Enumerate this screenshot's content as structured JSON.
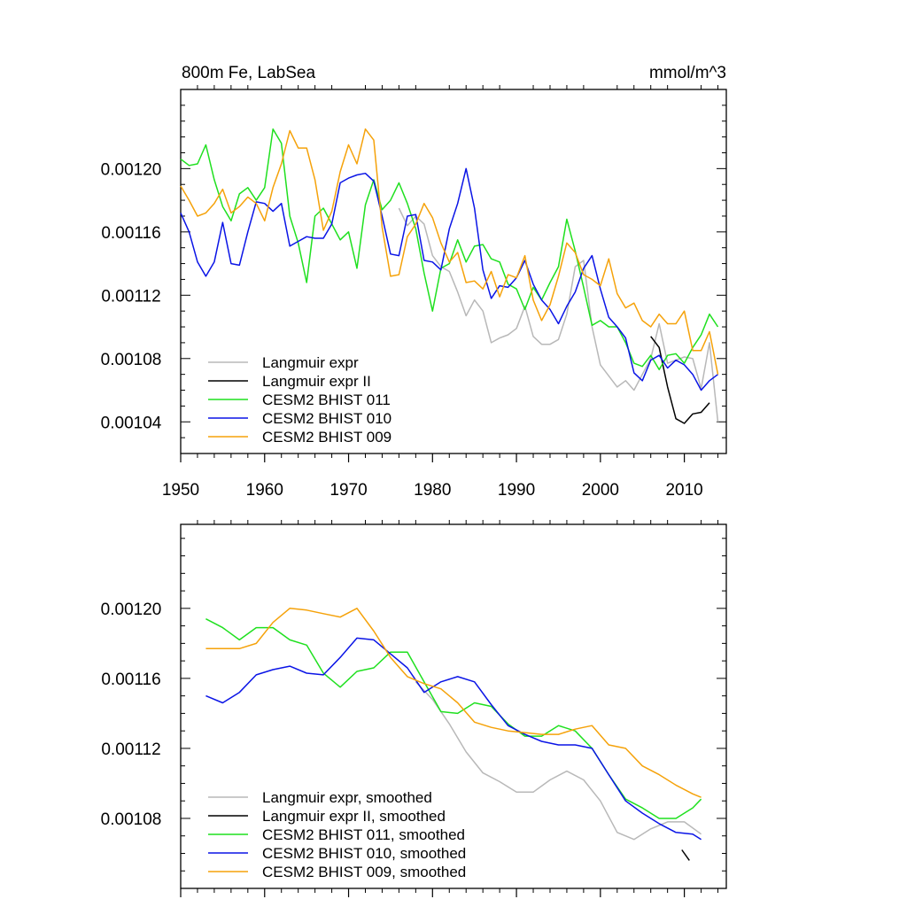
{
  "colors": {
    "Langmuir expr": "#b8b8b8",
    "Langmuir expr II": "#000000",
    "CESM2 BHIST 011": "#1fe01f",
    "CESM2 BHIST 010": "#0a14e6",
    "CESM2 BHIST 009": "#f5a20a"
  },
  "chart_data": [
    {
      "type": "line",
      "title": "800m Fe, LabSea",
      "units": "mmol/m^3",
      "xlim": [
        1950,
        2015
      ],
      "ylim": [
        0.00102,
        0.00125
      ],
      "xticks": [
        1950,
        1960,
        1970,
        1980,
        1990,
        2000,
        2010
      ],
      "xticklabels": [
        "1950",
        "1960",
        "1970",
        "1980",
        "1990",
        "2000",
        "2010"
      ],
      "yticks": [
        0.00104,
        0.00108,
        0.00112,
        0.00116,
        0.0012
      ],
      "yticklabels": [
        "0.00104",
        "0.00108",
        "0.00112",
        "0.00116",
        "0.00120"
      ],
      "legend_position": "bottom-left",
      "legend": [
        "Langmuir expr",
        "Langmuir expr II",
        "CESM2 BHIST 011",
        "CESM2 BHIST 010",
        "CESM2 BHIST 009"
      ],
      "series": [
        {
          "name": "Langmuir expr",
          "x": [
            1976,
            1977,
            1978,
            1979,
            1980,
            1981,
            1982,
            1983,
            1984,
            1985,
            1986,
            1987,
            1988,
            1989,
            1990,
            1991,
            1992,
            1993,
            1994,
            1995,
            1996,
            1997,
            1998,
            1999,
            2000,
            2001,
            2002,
            2003,
            2004,
            2005,
            2006,
            2007,
            2008,
            2009,
            2010,
            2011,
            2012,
            2013,
            2014
          ],
          "values": [
            0.001175,
            0.001164,
            0.00117,
            0.001165,
            0.001145,
            0.001138,
            0.001135,
            0.001122,
            0.001107,
            0.001117,
            0.00111,
            0.00109,
            0.001093,
            0.001095,
            0.001099,
            0.001113,
            0.001094,
            0.001089,
            0.001089,
            0.001092,
            0.001108,
            0.001138,
            0.001142,
            0.0011,
            0.001076,
            0.001069,
            0.001062,
            0.001066,
            0.00106,
            0.00107,
            0.00108,
            0.001102,
            0.001077,
            0.001079,
            0.001081,
            0.00108,
            0.001061,
            0.00109,
            0.00104
          ]
        },
        {
          "name": "Langmuir expr II",
          "x": [
            2006,
            2007,
            2008,
            2009,
            2010,
            2011,
            2012,
            2013
          ],
          "values": [
            0.001094,
            0.001087,
            0.001062,
            0.001042,
            0.001039,
            0.001045,
            0.001046,
            0.001052
          ]
        },
        {
          "name": "CESM2 BHIST 011",
          "x": [
            1950,
            1951,
            1952,
            1953,
            1954,
            1955,
            1956,
            1957,
            1958,
            1959,
            1960,
            1961,
            1962,
            1963,
            1964,
            1965,
            1966,
            1967,
            1968,
            1969,
            1970,
            1971,
            1972,
            1973,
            1974,
            1975,
            1976,
            1977,
            1978,
            1979,
            1980,
            1981,
            1982,
            1983,
            1984,
            1985,
            1986,
            1987,
            1988,
            1989,
            1990,
            1991,
            1992,
            1993,
            1994,
            1995,
            1996,
            1997,
            1998,
            1999,
            2000,
            2001,
            2002,
            2003,
            2004,
            2005,
            2006,
            2007,
            2008,
            2009,
            2010,
            2011,
            2012,
            2013,
            2014
          ],
          "values": [
            0.001206,
            0.001202,
            0.001203,
            0.001215,
            0.001193,
            0.001176,
            0.001167,
            0.001184,
            0.001188,
            0.00118,
            0.001188,
            0.001225,
            0.001216,
            0.00117,
            0.001153,
            0.001128,
            0.00117,
            0.001175,
            0.001165,
            0.001155,
            0.00116,
            0.001137,
            0.001177,
            0.001193,
            0.001174,
            0.00118,
            0.001191,
            0.001178,
            0.001162,
            0.001134,
            0.00111,
            0.001137,
            0.00114,
            0.001155,
            0.001141,
            0.001151,
            0.001152,
            0.001143,
            0.001141,
            0.001127,
            0.001124,
            0.001111,
            0.001125,
            0.001117,
            0.001128,
            0.001138,
            0.001168,
            0.001148,
            0.001125,
            0.001101,
            0.001104,
            0.0011,
            0.0011,
            0.00109,
            0.001077,
            0.001075,
            0.001082,
            0.001073,
            0.001082,
            0.001083,
            0.001077,
            0.001087,
            0.001095,
            0.001108,
            0.0011
          ]
        },
        {
          "name": "CESM2 BHIST 010",
          "x": [
            1950,
            1951,
            1952,
            1953,
            1954,
            1955,
            1956,
            1957,
            1958,
            1959,
            1960,
            1961,
            1962,
            1963,
            1964,
            1965,
            1966,
            1967,
            1968,
            1969,
            1970,
            1971,
            1972,
            1973,
            1974,
            1975,
            1976,
            1977,
            1978,
            1979,
            1980,
            1981,
            1982,
            1983,
            1984,
            1985,
            1986,
            1987,
            1988,
            1989,
            1990,
            1991,
            1992,
            1993,
            1994,
            1995,
            1996,
            1997,
            1998,
            1999,
            2000,
            2001,
            2002,
            2003,
            2004,
            2005,
            2006,
            2007,
            2008,
            2009,
            2010,
            2011,
            2012,
            2013,
            2014
          ],
          "values": [
            0.001172,
            0.00116,
            0.001141,
            0.001132,
            0.001141,
            0.001166,
            0.00114,
            0.001139,
            0.00116,
            0.001179,
            0.001178,
            0.001173,
            0.001178,
            0.001151,
            0.001154,
            0.001157,
            0.001156,
            0.001156,
            0.001165,
            0.001191,
            0.001194,
            0.001196,
            0.001197,
            0.001192,
            0.00117,
            0.001146,
            0.001145,
            0.00117,
            0.001171,
            0.001142,
            0.001141,
            0.001136,
            0.001162,
            0.001178,
            0.0012,
            0.001175,
            0.001136,
            0.001118,
            0.001126,
            0.001125,
            0.001131,
            0.001142,
            0.001127,
            0.001117,
            0.001111,
            0.001102,
            0.001113,
            0.001122,
            0.001137,
            0.001145,
            0.001124,
            0.001106,
            0.0011,
            0.001093,
            0.001071,
            0.001066,
            0.001079,
            0.001082,
            0.001074,
            0.001079,
            0.001076,
            0.00107,
            0.00106,
            0.001066,
            0.00107
          ]
        },
        {
          "name": "CESM2 BHIST 009",
          "x": [
            1950,
            1951,
            1952,
            1953,
            1954,
            1955,
            1956,
            1957,
            1958,
            1959,
            1960,
            1961,
            1962,
            1963,
            1964,
            1965,
            1966,
            1967,
            1968,
            1969,
            1970,
            1971,
            1972,
            1973,
            1974,
            1975,
            1976,
            1977,
            1978,
            1979,
            1980,
            1981,
            1982,
            1983,
            1984,
            1985,
            1986,
            1987,
            1988,
            1989,
            1990,
            1991,
            1992,
            1993,
            1994,
            1995,
            1996,
            1997,
            1998,
            1999,
            2000,
            2001,
            2002,
            2003,
            2004,
            2005,
            2006,
            2007,
            2008,
            2009,
            2010,
            2011,
            2012,
            2013,
            2014
          ],
          "values": [
            0.001189,
            0.00118,
            0.00117,
            0.001172,
            0.001178,
            0.001187,
            0.001172,
            0.001176,
            0.001182,
            0.001178,
            0.001167,
            0.001188,
            0.001203,
            0.001224,
            0.001213,
            0.001213,
            0.001193,
            0.001161,
            0.001173,
            0.001198,
            0.001215,
            0.001203,
            0.001225,
            0.001218,
            0.001163,
            0.001132,
            0.001133,
            0.001157,
            0.001165,
            0.001178,
            0.001169,
            0.001153,
            0.001141,
            0.001147,
            0.001128,
            0.001129,
            0.001124,
            0.001135,
            0.001119,
            0.001133,
            0.001131,
            0.001145,
            0.001117,
            0.001104,
            0.001114,
            0.001132,
            0.001153,
            0.001147,
            0.001133,
            0.00113,
            0.001126,
            0.001143,
            0.001121,
            0.001112,
            0.001115,
            0.001104,
            0.0011,
            0.001108,
            0.001102,
            0.001102,
            0.00111,
            0.001085,
            0.001085,
            0.001097,
            0.00107
          ]
        }
      ]
    },
    {
      "type": "line",
      "xlim": [
        1950,
        2015
      ],
      "ylim": [
        0.00104,
        0.001248
      ],
      "xticks": [
        1950,
        1960,
        1970,
        1980,
        1990,
        2000,
        2010
      ],
      "yticks": [
        0.00108,
        0.00112,
        0.00116,
        0.0012
      ],
      "yticklabels": [
        "0.00108",
        "0.00112",
        "0.00116",
        "0.00120"
      ],
      "legend_position": "bottom-left",
      "legend": [
        "Langmuir expr, smoothed",
        "Langmuir expr II, smoothed",
        "CESM2 BHIST 011, smoothed",
        "CESM2 BHIST 010, smoothed",
        "CESM2 BHIST 009, smoothed"
      ],
      "series": [
        {
          "name": "Langmuir expr, smoothed",
          "x": [
            1978,
            1980,
            1982,
            1984,
            1986,
            1988,
            1990,
            1992,
            1994,
            1996,
            1998,
            2000,
            2002,
            2004,
            2006,
            2008,
            2010,
            2012
          ],
          "values": [
            0.001158,
            0.001148,
            0.001134,
            0.001118,
            0.001106,
            0.001101,
            0.001095,
            0.001095,
            0.001102,
            0.001107,
            0.001102,
            0.00109,
            0.001072,
            0.001068,
            0.001074,
            0.001078,
            0.001078,
            0.001071
          ]
        },
        {
          "name": "Langmuir expr II, smoothed",
          "x": [
            2009.7,
            2010.6
          ],
          "values": [
            0.001062,
            0.001056
          ]
        },
        {
          "name": "CESM2 BHIST 011, smoothed",
          "x": [
            1953,
            1955,
            1957,
            1959,
            1961,
            1963,
            1965,
            1967,
            1969,
            1971,
            1973,
            1975,
            1977,
            1979,
            1981,
            1983,
            1985,
            1987,
            1989,
            1991,
            1993,
            1995,
            1997,
            1999,
            2001,
            2003,
            2005,
            2007,
            2009,
            2011,
            2012
          ],
          "values": [
            0.001194,
            0.001189,
            0.001182,
            0.001189,
            0.001189,
            0.001182,
            0.001179,
            0.001163,
            0.001155,
            0.001164,
            0.001166,
            0.001175,
            0.001175,
            0.001158,
            0.001141,
            0.00114,
            0.001146,
            0.001144,
            0.001134,
            0.001127,
            0.001127,
            0.001133,
            0.00113,
            0.00112,
            0.001105,
            0.001091,
            0.001086,
            0.00108,
            0.00108,
            0.001086,
            0.001091
          ]
        },
        {
          "name": "CESM2 BHIST 010, smoothed",
          "x": [
            1953,
            1955,
            1957,
            1959,
            1961,
            1963,
            1965,
            1967,
            1969,
            1971,
            1973,
            1975,
            1977,
            1979,
            1981,
            1983,
            1985,
            1987,
            1989,
            1991,
            1993,
            1995,
            1997,
            1999,
            2001,
            2003,
            2005,
            2007,
            2009,
            2011,
            2012
          ],
          "values": [
            0.00115,
            0.001146,
            0.001152,
            0.001162,
            0.001165,
            0.001167,
            0.001163,
            0.001162,
            0.001172,
            0.001183,
            0.001182,
            0.001174,
            0.001166,
            0.001152,
            0.001158,
            0.001161,
            0.001158,
            0.001145,
            0.001133,
            0.001128,
            0.001124,
            0.001122,
            0.001122,
            0.00112,
            0.001105,
            0.00109,
            0.001083,
            0.001077,
            0.001072,
            0.001071,
            0.001068
          ]
        },
        {
          "name": "CESM2 BHIST 009, smoothed",
          "x": [
            1953,
            1955,
            1957,
            1959,
            1961,
            1963,
            1965,
            1967,
            1969,
            1971,
            1973,
            1975,
            1977,
            1979,
            1981,
            1983,
            1985,
            1987,
            1989,
            1991,
            1993,
            1995,
            1997,
            1999,
            2001,
            2003,
            2005,
            2007,
            2009,
            2011,
            2012
          ],
          "values": [
            0.001177,
            0.001177,
            0.001177,
            0.00118,
            0.001192,
            0.0012,
            0.001199,
            0.001197,
            0.001195,
            0.0012,
            0.001187,
            0.001172,
            0.001161,
            0.001157,
            0.001154,
            0.001146,
            0.001135,
            0.001132,
            0.00113,
            0.001129,
            0.001128,
            0.001128,
            0.001131,
            0.001133,
            0.001122,
            0.00112,
            0.00111,
            0.001105,
            0.001099,
            0.001094,
            0.001092
          ]
        }
      ]
    }
  ]
}
